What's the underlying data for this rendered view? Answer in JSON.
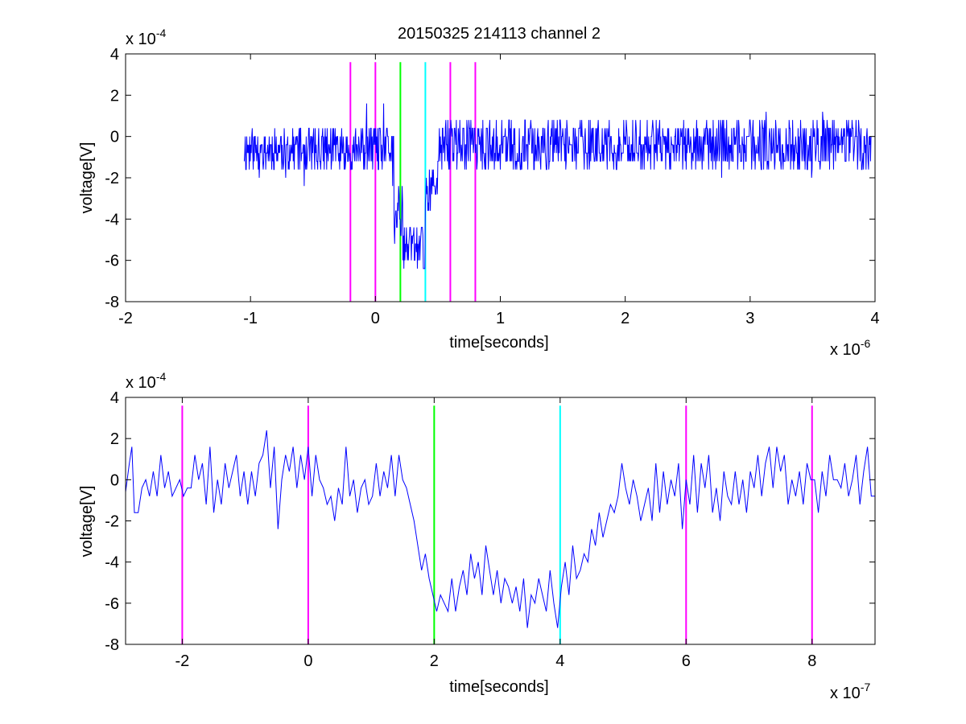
{
  "figure": {
    "title": "20150325 214113 channel 2",
    "background": "#ffffff"
  },
  "chart_data": [
    {
      "type": "line",
      "title": "20150325 214113 channel 2",
      "xlabel": "time[seconds]",
      "ylabel": "voltage[V]",
      "x_exponent_label": "x 10",
      "x_exponent": "-6",
      "y_exponent_label": "x 10",
      "y_exponent": "-4",
      "xlim": [
        -2,
        4
      ],
      "ylim": [
        -8,
        4
      ],
      "x_ticks": [
        -2,
        -1,
        0,
        1,
        2,
        3,
        4
      ],
      "y_ticks": [
        -8,
        -6,
        -4,
        -2,
        0,
        2,
        4
      ],
      "x_tick_labels": [
        "-2",
        "-1",
        "0",
        "1",
        "2",
        "3",
        "4"
      ],
      "y_tick_labels": [
        "-8",
        "-6",
        "-4",
        "-2",
        "0",
        "2",
        "4"
      ],
      "grid": false,
      "signal_color": "#0000ff",
      "signal_x_range": [
        -1.05,
        3.97
      ],
      "signal_step": 0.004,
      "markers": [
        {
          "x": -0.2,
          "color": "#ff00ff"
        },
        {
          "x": 0.0,
          "color": "#ff00ff"
        },
        {
          "x": 0.2,
          "color": "#00ff00"
        },
        {
          "x": 0.4,
          "color": "#00ffff"
        },
        {
          "x": 0.6,
          "color": "#ff00ff"
        },
        {
          "x": 0.8,
          "color": "#ff00ff"
        }
      ],
      "marker_ylim": [
        -8,
        3.6
      ],
      "segments": [
        {
          "from": -1.05,
          "to": 0.15,
          "mean": -0.6,
          "amp": 1.1,
          "noise_seed": 11
        },
        {
          "from": 0.15,
          "to": 0.22,
          "mean": -3.8,
          "amp": 1.4,
          "noise_seed": 12
        },
        {
          "from": 0.22,
          "to": 0.4,
          "mean": -5.4,
          "amp": 1.0,
          "noise_seed": 13
        },
        {
          "from": 0.4,
          "to": 0.5,
          "mean": -2.6,
          "amp": 1.4,
          "noise_seed": 14
        },
        {
          "from": 0.5,
          "to": 3.97,
          "mean": -0.4,
          "amp": 1.2,
          "noise_seed": 15
        }
      ]
    },
    {
      "type": "line",
      "xlabel": "time[seconds]",
      "ylabel": "voltage[V]",
      "x_exponent_label": "x 10",
      "x_exponent": "-7",
      "y_exponent_label": "x 10",
      "y_exponent": "-4",
      "xlim": [
        -2.9,
        9.0
      ],
      "ylim": [
        -8,
        4
      ],
      "x_ticks": [
        -2,
        0,
        2,
        4,
        6,
        8
      ],
      "y_ticks": [
        -8,
        -6,
        -4,
        -2,
        0,
        2,
        4
      ],
      "x_tick_labels": [
        "-2",
        "0",
        "2",
        "4",
        "6",
        "8"
      ],
      "y_tick_labels": [
        "-8",
        "-6",
        "-4",
        "-2",
        "0",
        "2",
        "4"
      ],
      "grid": false,
      "signal_color": "#0000ff",
      "signal_x_range": [
        -2.9,
        9.0
      ],
      "signal_step": 0.04,
      "markers": [
        {
          "x": -2,
          "color": "#ff00ff"
        },
        {
          "x": 0,
          "color": "#ff00ff"
        },
        {
          "x": 2,
          "color": "#00ff00"
        },
        {
          "x": 4,
          "color": "#00ffff"
        },
        {
          "x": 6,
          "color": "#ff00ff"
        },
        {
          "x": 8,
          "color": "#ff00ff"
        }
      ],
      "marker_ylim": [
        -8,
        3.6
      ],
      "points": [
        [
          -2.9,
          -0.6
        ],
        [
          -2.84,
          0.8
        ],
        [
          -2.8,
          1.6
        ],
        [
          -2.76,
          -1.6
        ],
        [
          -2.7,
          -1.6
        ],
        [
          -2.64,
          -0.4
        ],
        [
          -2.58,
          0.0
        ],
        [
          -2.52,
          -0.8
        ],
        [
          -2.46,
          0.4
        ],
        [
          -2.4,
          -0.8
        ],
        [
          -2.34,
          1.2
        ],
        [
          -2.28,
          -0.4
        ],
        [
          -2.22,
          0.4
        ],
        [
          -2.16,
          -0.8
        ],
        [
          -2.1,
          -0.4
        ],
        [
          -2.04,
          0.0
        ],
        [
          -1.98,
          -0.8
        ],
        [
          -1.92,
          -0.4
        ],
        [
          -1.86,
          -0.4
        ],
        [
          -1.8,
          1.2
        ],
        [
          -1.74,
          0.0
        ],
        [
          -1.68,
          0.8
        ],
        [
          -1.62,
          -1.2
        ],
        [
          -1.56,
          1.6
        ],
        [
          -1.5,
          -1.6
        ],
        [
          -1.44,
          0.0
        ],
        [
          -1.38,
          -1.2
        ],
        [
          -1.32,
          0.8
        ],
        [
          -1.26,
          -0.4
        ],
        [
          -1.2,
          0.4
        ],
        [
          -1.14,
          1.2
        ],
        [
          -1.08,
          -0.8
        ],
        [
          -1.02,
          0.4
        ],
        [
          -0.96,
          -1.2
        ],
        [
          -0.9,
          0.4
        ],
        [
          -0.84,
          -0.8
        ],
        [
          -0.78,
          0.8
        ],
        [
          -0.72,
          1.2
        ],
        [
          -0.66,
          2.4
        ],
        [
          -0.6,
          -0.4
        ],
        [
          -0.54,
          1.6
        ],
        [
          -0.48,
          -2.4
        ],
        [
          -0.42,
          0.0
        ],
        [
          -0.36,
          1.2
        ],
        [
          -0.3,
          0.4
        ],
        [
          -0.24,
          1.6
        ],
        [
          -0.18,
          -0.4
        ],
        [
          -0.12,
          1.2
        ],
        [
          -0.06,
          0.0
        ],
        [
          0.0,
          1.6
        ],
        [
          0.06,
          -0.8
        ],
        [
          0.12,
          1.2
        ],
        [
          0.18,
          0.0
        ],
        [
          0.24,
          -0.4
        ],
        [
          0.3,
          -1.2
        ],
        [
          0.36,
          -0.8
        ],
        [
          0.42,
          -2.0
        ],
        [
          0.48,
          -0.4
        ],
        [
          0.54,
          -1.2
        ],
        [
          0.6,
          1.6
        ],
        [
          0.66,
          -0.8
        ],
        [
          0.72,
          0.0
        ],
        [
          0.78,
          -1.6
        ],
        [
          0.84,
          -0.4
        ],
        [
          0.9,
          0.0
        ],
        [
          0.96,
          -1.2
        ],
        [
          1.02,
          -0.8
        ],
        [
          1.08,
          0.8
        ],
        [
          1.14,
          -0.8
        ],
        [
          1.2,
          0.4
        ],
        [
          1.26,
          -0.4
        ],
        [
          1.32,
          1.2
        ],
        [
          1.38,
          -0.8
        ],
        [
          1.44,
          1.2
        ],
        [
          1.5,
          0.0
        ],
        [
          1.56,
          -0.4
        ],
        [
          1.62,
          -1.2
        ],
        [
          1.68,
          -2.0
        ],
        [
          1.74,
          -3.2
        ],
        [
          1.8,
          -4.4
        ],
        [
          1.86,
          -3.6
        ],
        [
          1.92,
          -4.8
        ],
        [
          1.98,
          -5.6
        ],
        [
          2.04,
          -6.4
        ],
        [
          2.1,
          -5.6
        ],
        [
          2.16,
          -6.0
        ],
        [
          2.22,
          -6.4
        ],
        [
          2.28,
          -4.8
        ],
        [
          2.34,
          -6.4
        ],
        [
          2.4,
          -5.2
        ],
        [
          2.46,
          -4.4
        ],
        [
          2.52,
          -5.6
        ],
        [
          2.58,
          -3.6
        ],
        [
          2.64,
          -4.8
        ],
        [
          2.7,
          -4.0
        ],
        [
          2.76,
          -5.6
        ],
        [
          2.82,
          -3.2
        ],
        [
          2.88,
          -4.4
        ],
        [
          2.94,
          -5.6
        ],
        [
          3.0,
          -4.4
        ],
        [
          3.06,
          -6.0
        ],
        [
          3.12,
          -4.8
        ],
        [
          3.18,
          -5.2
        ],
        [
          3.24,
          -6.0
        ],
        [
          3.3,
          -5.2
        ],
        [
          3.36,
          -6.4
        ],
        [
          3.42,
          -4.8
        ],
        [
          3.48,
          -7.2
        ],
        [
          3.54,
          -5.6
        ],
        [
          3.6,
          -6.0
        ],
        [
          3.66,
          -4.8
        ],
        [
          3.72,
          -5.6
        ],
        [
          3.78,
          -6.4
        ],
        [
          3.84,
          -4.4
        ],
        [
          3.9,
          -6.0
        ],
        [
          3.96,
          -7.2
        ],
        [
          4.02,
          -5.2
        ],
        [
          4.08,
          -4.0
        ],
        [
          4.14,
          -5.6
        ],
        [
          4.2,
          -3.2
        ],
        [
          4.26,
          -4.8
        ],
        [
          4.32,
          -4.4
        ],
        [
          4.38,
          -3.6
        ],
        [
          4.44,
          -4.0
        ],
        [
          4.5,
          -2.4
        ],
        [
          4.56,
          -3.2
        ],
        [
          4.62,
          -1.6
        ],
        [
          4.68,
          -2.8
        ],
        [
          4.74,
          -2.0
        ],
        [
          4.8,
          -1.2
        ],
        [
          4.86,
          -1.6
        ],
        [
          4.92,
          -0.8
        ],
        [
          4.98,
          0.8
        ],
        [
          5.04,
          -0.4
        ],
        [
          5.1,
          -1.2
        ],
        [
          5.16,
          0.0
        ],
        [
          5.22,
          -0.8
        ],
        [
          5.28,
          -2.0
        ],
        [
          5.34,
          -1.2
        ],
        [
          5.4,
          -0.4
        ],
        [
          5.46,
          -2.0
        ],
        [
          5.52,
          0.8
        ],
        [
          5.58,
          -1.6
        ],
        [
          5.64,
          0.4
        ],
        [
          5.7,
          -1.2
        ],
        [
          5.76,
          0.0
        ],
        [
          5.82,
          -0.8
        ],
        [
          5.88,
          0.8
        ],
        [
          5.94,
          -2.4
        ],
        [
          6.0,
          0.0
        ],
        [
          6.06,
          -1.2
        ],
        [
          6.12,
          1.2
        ],
        [
          6.18,
          -1.6
        ],
        [
          6.24,
          0.8
        ],
        [
          6.3,
          -0.4
        ],
        [
          6.36,
          1.2
        ],
        [
          6.42,
          -1.6
        ],
        [
          6.48,
          -0.4
        ],
        [
          6.54,
          -2.0
        ],
        [
          6.6,
          0.4
        ],
        [
          6.66,
          -0.8
        ],
        [
          6.72,
          -1.2
        ],
        [
          6.78,
          0.4
        ],
        [
          6.84,
          -1.2
        ],
        [
          6.9,
          0.0
        ],
        [
          6.96,
          -1.6
        ],
        [
          7.02,
          0.4
        ],
        [
          7.08,
          -0.4
        ],
        [
          7.14,
          1.2
        ],
        [
          7.2,
          -0.8
        ],
        [
          7.26,
          0.8
        ],
        [
          7.32,
          1.6
        ],
        [
          7.38,
          -0.4
        ],
        [
          7.44,
          1.6
        ],
        [
          7.5,
          0.4
        ],
        [
          7.56,
          1.2
        ],
        [
          7.62,
          -1.2
        ],
        [
          7.68,
          0.0
        ],
        [
          7.74,
          -0.8
        ],
        [
          7.8,
          0.4
        ],
        [
          7.86,
          -1.2
        ],
        [
          7.92,
          0.8
        ],
        [
          7.98,
          0.0
        ],
        [
          8.04,
          0.0
        ],
        [
          8.1,
          -1.6
        ],
        [
          8.16,
          0.4
        ],
        [
          8.22,
          -0.8
        ],
        [
          8.28,
          1.2
        ],
        [
          8.34,
          0.0
        ],
        [
          8.4,
          0.0
        ],
        [
          8.46,
          -0.4
        ],
        [
          8.52,
          0.8
        ],
        [
          8.58,
          -0.8
        ],
        [
          8.64,
          0.0
        ],
        [
          8.7,
          1.2
        ],
        [
          8.76,
          -1.2
        ],
        [
          8.82,
          0.4
        ],
        [
          8.88,
          1.6
        ],
        [
          8.94,
          -0.8
        ],
        [
          9.0,
          -0.8
        ]
      ]
    }
  ]
}
